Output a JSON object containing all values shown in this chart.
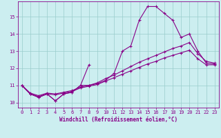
{
  "xlabel": "Windchill (Refroidissement éolien,°C)",
  "bg_color": "#cceef0",
  "line_color": "#880088",
  "grid_color": "#99cccc",
  "xlim": [
    -0.5,
    23.5
  ],
  "ylim": [
    9.7,
    15.9
  ],
  "xticks": [
    0,
    1,
    2,
    3,
    4,
    5,
    6,
    7,
    8,
    9,
    10,
    11,
    12,
    13,
    14,
    15,
    16,
    17,
    18,
    19,
    20,
    21,
    22,
    23
  ],
  "yticks": [
    10,
    11,
    12,
    13,
    14,
    15
  ],
  "lines": [
    {
      "x": [
        0,
        1,
        2,
        3,
        4,
        5,
        6,
        7,
        8
      ],
      "y": [
        11.0,
        10.5,
        10.3,
        10.5,
        10.1,
        10.5,
        10.6,
        11.0,
        12.2
      ]
    },
    {
      "x": [
        0,
        1,
        2,
        3,
        4,
        5,
        6,
        7,
        8,
        9,
        10,
        11,
        12,
        13,
        14,
        15,
        16,
        17,
        18,
        19,
        20,
        21,
        22,
        23
      ],
      "y": [
        11.0,
        10.5,
        10.3,
        10.5,
        10.1,
        10.5,
        10.6,
        11.0,
        11.0,
        11.1,
        11.3,
        11.7,
        13.0,
        13.3,
        14.8,
        15.6,
        15.6,
        15.2,
        14.8,
        13.8,
        14.0,
        13.0,
        12.3,
        12.25
      ]
    },
    {
      "x": [
        0,
        1,
        2,
        3,
        4,
        5,
        6,
        7,
        8,
        9,
        10,
        11,
        12,
        13,
        14,
        15,
        16,
        17,
        18,
        19,
        20,
        21,
        22,
        23
      ],
      "y": [
        11.0,
        10.55,
        10.4,
        10.55,
        10.5,
        10.6,
        10.7,
        10.9,
        11.0,
        11.15,
        11.4,
        11.6,
        11.85,
        12.1,
        12.35,
        12.55,
        12.75,
        12.95,
        13.15,
        13.3,
        13.5,
        12.85,
        12.4,
        12.3
      ]
    },
    {
      "x": [
        0,
        1,
        2,
        3,
        4,
        5,
        6,
        7,
        8,
        9,
        10,
        11,
        12,
        13,
        14,
        15,
        16,
        17,
        18,
        19,
        20,
        21,
        22,
        23
      ],
      "y": [
        11.0,
        10.5,
        10.35,
        10.5,
        10.45,
        10.55,
        10.65,
        10.85,
        10.95,
        11.05,
        11.25,
        11.45,
        11.65,
        11.85,
        12.05,
        12.25,
        12.4,
        12.6,
        12.75,
        12.9,
        13.05,
        12.55,
        12.2,
        12.2
      ]
    }
  ]
}
